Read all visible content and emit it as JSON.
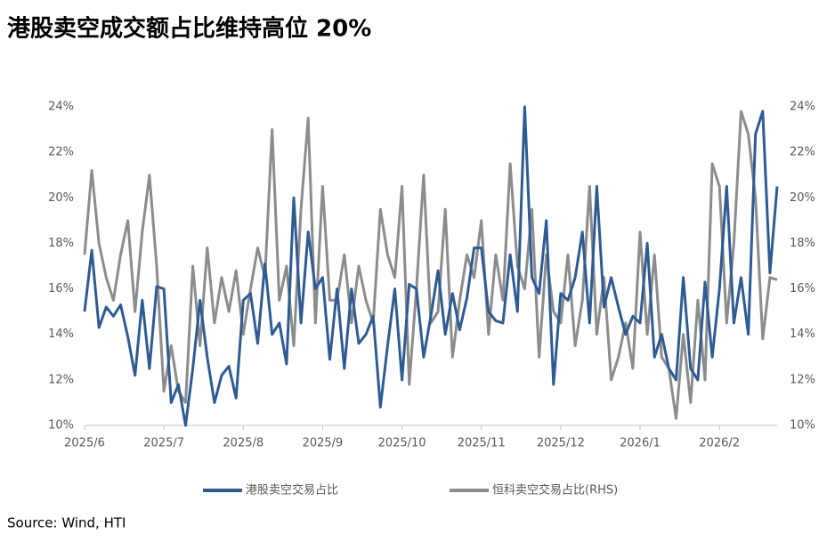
{
  "chart_data": {
    "type": "line",
    "title": "港股卖空成交额占比维持高位 20%",
    "source": "Source: Wind, HTI",
    "categories": [
      "2025/6",
      null,
      null,
      null,
      null,
      null,
      null,
      null,
      null,
      null,
      null,
      "2025/7",
      null,
      null,
      null,
      null,
      null,
      null,
      null,
      null,
      null,
      null,
      "2025/8",
      null,
      null,
      null,
      null,
      null,
      null,
      null,
      null,
      null,
      null,
      "2025/9",
      null,
      null,
      null,
      null,
      null,
      null,
      null,
      null,
      null,
      null,
      "2025/10",
      null,
      null,
      null,
      null,
      null,
      null,
      null,
      null,
      null,
      null,
      "2025/11",
      null,
      null,
      null,
      null,
      null,
      null,
      null,
      null,
      null,
      null,
      "2025/12",
      null,
      null,
      null,
      null,
      null,
      null,
      null,
      null,
      null,
      null,
      "2026/1",
      null,
      null,
      null,
      null,
      null,
      null,
      null,
      null,
      null,
      null,
      "2026/2",
      null,
      null,
      null,
      null,
      null,
      null,
      null,
      null
    ],
    "series": [
      {
        "name": "港股卖空交易占比",
        "color": "#2e5b94",
        "values": [
          15.0,
          17.7,
          14.3,
          15.2,
          14.8,
          15.3,
          13.9,
          12.2,
          15.5,
          12.5,
          16.1,
          16.0,
          11.0,
          11.8,
          10.0,
          12.5,
          15.5,
          13.0,
          11.0,
          12.2,
          12.6,
          11.2,
          15.5,
          15.8,
          13.6,
          17.1,
          14.0,
          14.5,
          12.7,
          20.0,
          14.5,
          18.5,
          16.0,
          16.5,
          12.9,
          16.0,
          12.5,
          16.0,
          13.6,
          14.0,
          14.8,
          10.8,
          13.5,
          16.0,
          12.0,
          16.2,
          16.0,
          13.0,
          14.8,
          16.8,
          14.0,
          15.8,
          14.2,
          15.6,
          17.8,
          17.8,
          15.0,
          14.6,
          14.5,
          17.5,
          15.0,
          24.0,
          16.5,
          15.8,
          19.0,
          11.8,
          15.8,
          15.5,
          16.5,
          18.5,
          14.5,
          20.5,
          15.2,
          16.5,
          15.2,
          14.0,
          14.8,
          14.5,
          18.0,
          13.0,
          14.0,
          12.5,
          12.0,
          16.5,
          12.5,
          12.0,
          16.3,
          13.0,
          16.0,
          20.5,
          14.5,
          16.5,
          14.0,
          22.8,
          23.8,
          16.7,
          20.5
        ]
      },
      {
        "name": "恒科卖空交易占比(RHS)",
        "color": "#8c8c8c",
        "axis": "y2",
        "values": [
          17.5,
          21.2,
          18.0,
          16.5,
          15.5,
          17.5,
          19.0,
          15.0,
          18.5,
          21.0,
          17.0,
          11.5,
          13.5,
          11.5,
          11.0,
          17.0,
          13.5,
          17.8,
          14.5,
          16.5,
          15.0,
          16.8,
          14.0,
          16.0,
          17.8,
          16.5,
          23.0,
          15.5,
          17.0,
          13.5,
          19.5,
          23.5,
          14.5,
          20.5,
          15.5,
          15.5,
          17.5,
          14.5,
          17.0,
          15.5,
          14.5,
          19.5,
          17.5,
          16.5,
          20.5,
          11.8,
          16.0,
          21.0,
          14.5,
          15.0,
          19.5,
          13.0,
          15.5,
          17.5,
          16.5,
          19.0,
          14.0,
          17.5,
          15.5,
          21.5,
          17.0,
          16.0,
          19.5,
          13.0,
          17.5,
          15.0,
          14.5,
          17.5,
          13.5,
          15.5,
          20.5,
          14.0,
          16.5,
          12.0,
          13.0,
          14.5,
          12.5,
          18.5,
          14.0,
          17.5,
          13.0,
          12.5,
          10.3,
          14.0,
          11.0,
          15.5,
          12.0,
          21.5,
          20.5,
          14.5,
          18.0,
          23.8,
          22.8,
          20.0,
          13.8,
          16.5,
          16.4
        ]
      }
    ],
    "ylim": [
      10,
      24
    ],
    "yticks": [
      {
        "value": 10,
        "label": "10%"
      },
      {
        "value": 12,
        "label": "12%"
      },
      {
        "value": 14,
        "label": "14%"
      },
      {
        "value": 16,
        "label": "16%"
      },
      {
        "value": 18,
        "label": "18%"
      },
      {
        "value": 20,
        "label": "20%"
      },
      {
        "value": 22,
        "label": "22%"
      },
      {
        "value": 24,
        "label": "24%"
      }
    ],
    "y2lim": [
      10,
      24
    ],
    "y2ticks": [
      {
        "value": 10,
        "label": "10%"
      },
      {
        "value": 12,
        "label": "12%"
      },
      {
        "value": 14,
        "label": "14%"
      },
      {
        "value": 16,
        "label": "16%"
      },
      {
        "value": 18,
        "label": "18%"
      },
      {
        "value": 20,
        "label": "20%"
      },
      {
        "value": 22,
        "label": "22%"
      },
      {
        "value": 24,
        "label": "24%"
      }
    ],
    "grid": false,
    "legend": "bottom"
  }
}
